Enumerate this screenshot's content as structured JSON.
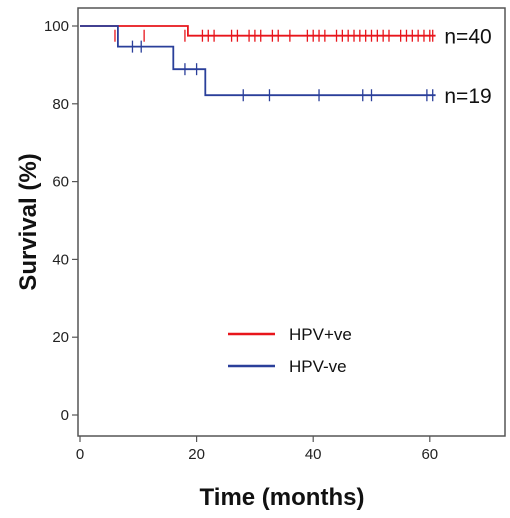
{
  "chart_data": {
    "type": "line",
    "subtype": "kaplan-meier",
    "xlabel": "Time (months)",
    "ylabel": "Survival (%)",
    "xlim": [
      0,
      75
    ],
    "ylim": [
      -5,
      105
    ],
    "xticks": [
      0,
      20,
      40,
      60
    ],
    "yticks": [
      0,
      20,
      40,
      60,
      80,
      100
    ],
    "grid": false,
    "legend_position": "bottom-center",
    "series": [
      {
        "name": "HPV+ve",
        "color": "#e8151b",
        "n_label": "n=40",
        "steps": [
          [
            0,
            100
          ],
          [
            18.5,
            100
          ],
          [
            18.5,
            97.5
          ],
          [
            61,
            97.5
          ]
        ],
        "censor_x": [
          6,
          11,
          18,
          21,
          22,
          23,
          26,
          27,
          29,
          30,
          31,
          33,
          34,
          36,
          39,
          40,
          41,
          42,
          44,
          45,
          46,
          47,
          48,
          49,
          50,
          51,
          52,
          53,
          55,
          56,
          57,
          58,
          59,
          60,
          60.5
        ],
        "censor_y": 97.5
      },
      {
        "name": "HPV-ve",
        "color": "#2a3f9a",
        "n_label": "n=19",
        "steps": [
          [
            0,
            100
          ],
          [
            6.5,
            100
          ],
          [
            6.5,
            94.7
          ],
          [
            16,
            94.7
          ],
          [
            16,
            88.9
          ],
          [
            21.5,
            88.9
          ],
          [
            21.5,
            82.2
          ],
          [
            61,
            82.2
          ]
        ],
        "censor_x": [
          9,
          10.5,
          18,
          20,
          28,
          32.5,
          41,
          48.5,
          50,
          59.5,
          60.5
        ],
        "censor_y_by_x": {
          "9": 94.7,
          "10.5": 94.7,
          "18": 88.9,
          "20": 88.9
        }
      }
    ],
    "series_censor_y_default": [
      97.5,
      82.2
    ]
  }
}
